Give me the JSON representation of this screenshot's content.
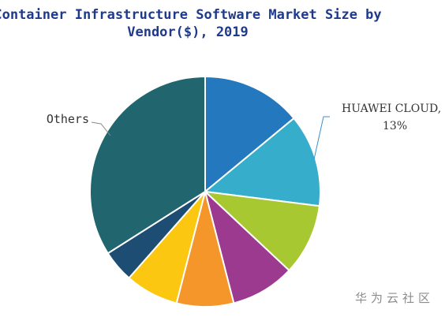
{
  "chart_data": {
    "type": "pie",
    "title_line1": "Container Infrastructure Software Market Size by",
    "title_line2": "Vendor($), 2019",
    "slices": [
      {
        "value": 14,
        "color": "#2378be"
      },
      {
        "value": 13,
        "color": "#36aecb"
      },
      {
        "value": 10,
        "color": "#a8c832"
      },
      {
        "value": 9,
        "color": "#9b3a8e"
      },
      {
        "value": 8,
        "color": "#f5962a"
      },
      {
        "value": 7.5,
        "color": "#fcc711"
      },
      {
        "value": 4.5,
        "color": "#1e4d73"
      },
      {
        "value": 34,
        "color": "#21666f"
      }
    ],
    "annotations": {
      "others": "Others",
      "huawei_line1": "HUAWEI CLOUD,",
      "huawei_line2": "13%"
    }
  },
  "watermark": "华为云社区"
}
